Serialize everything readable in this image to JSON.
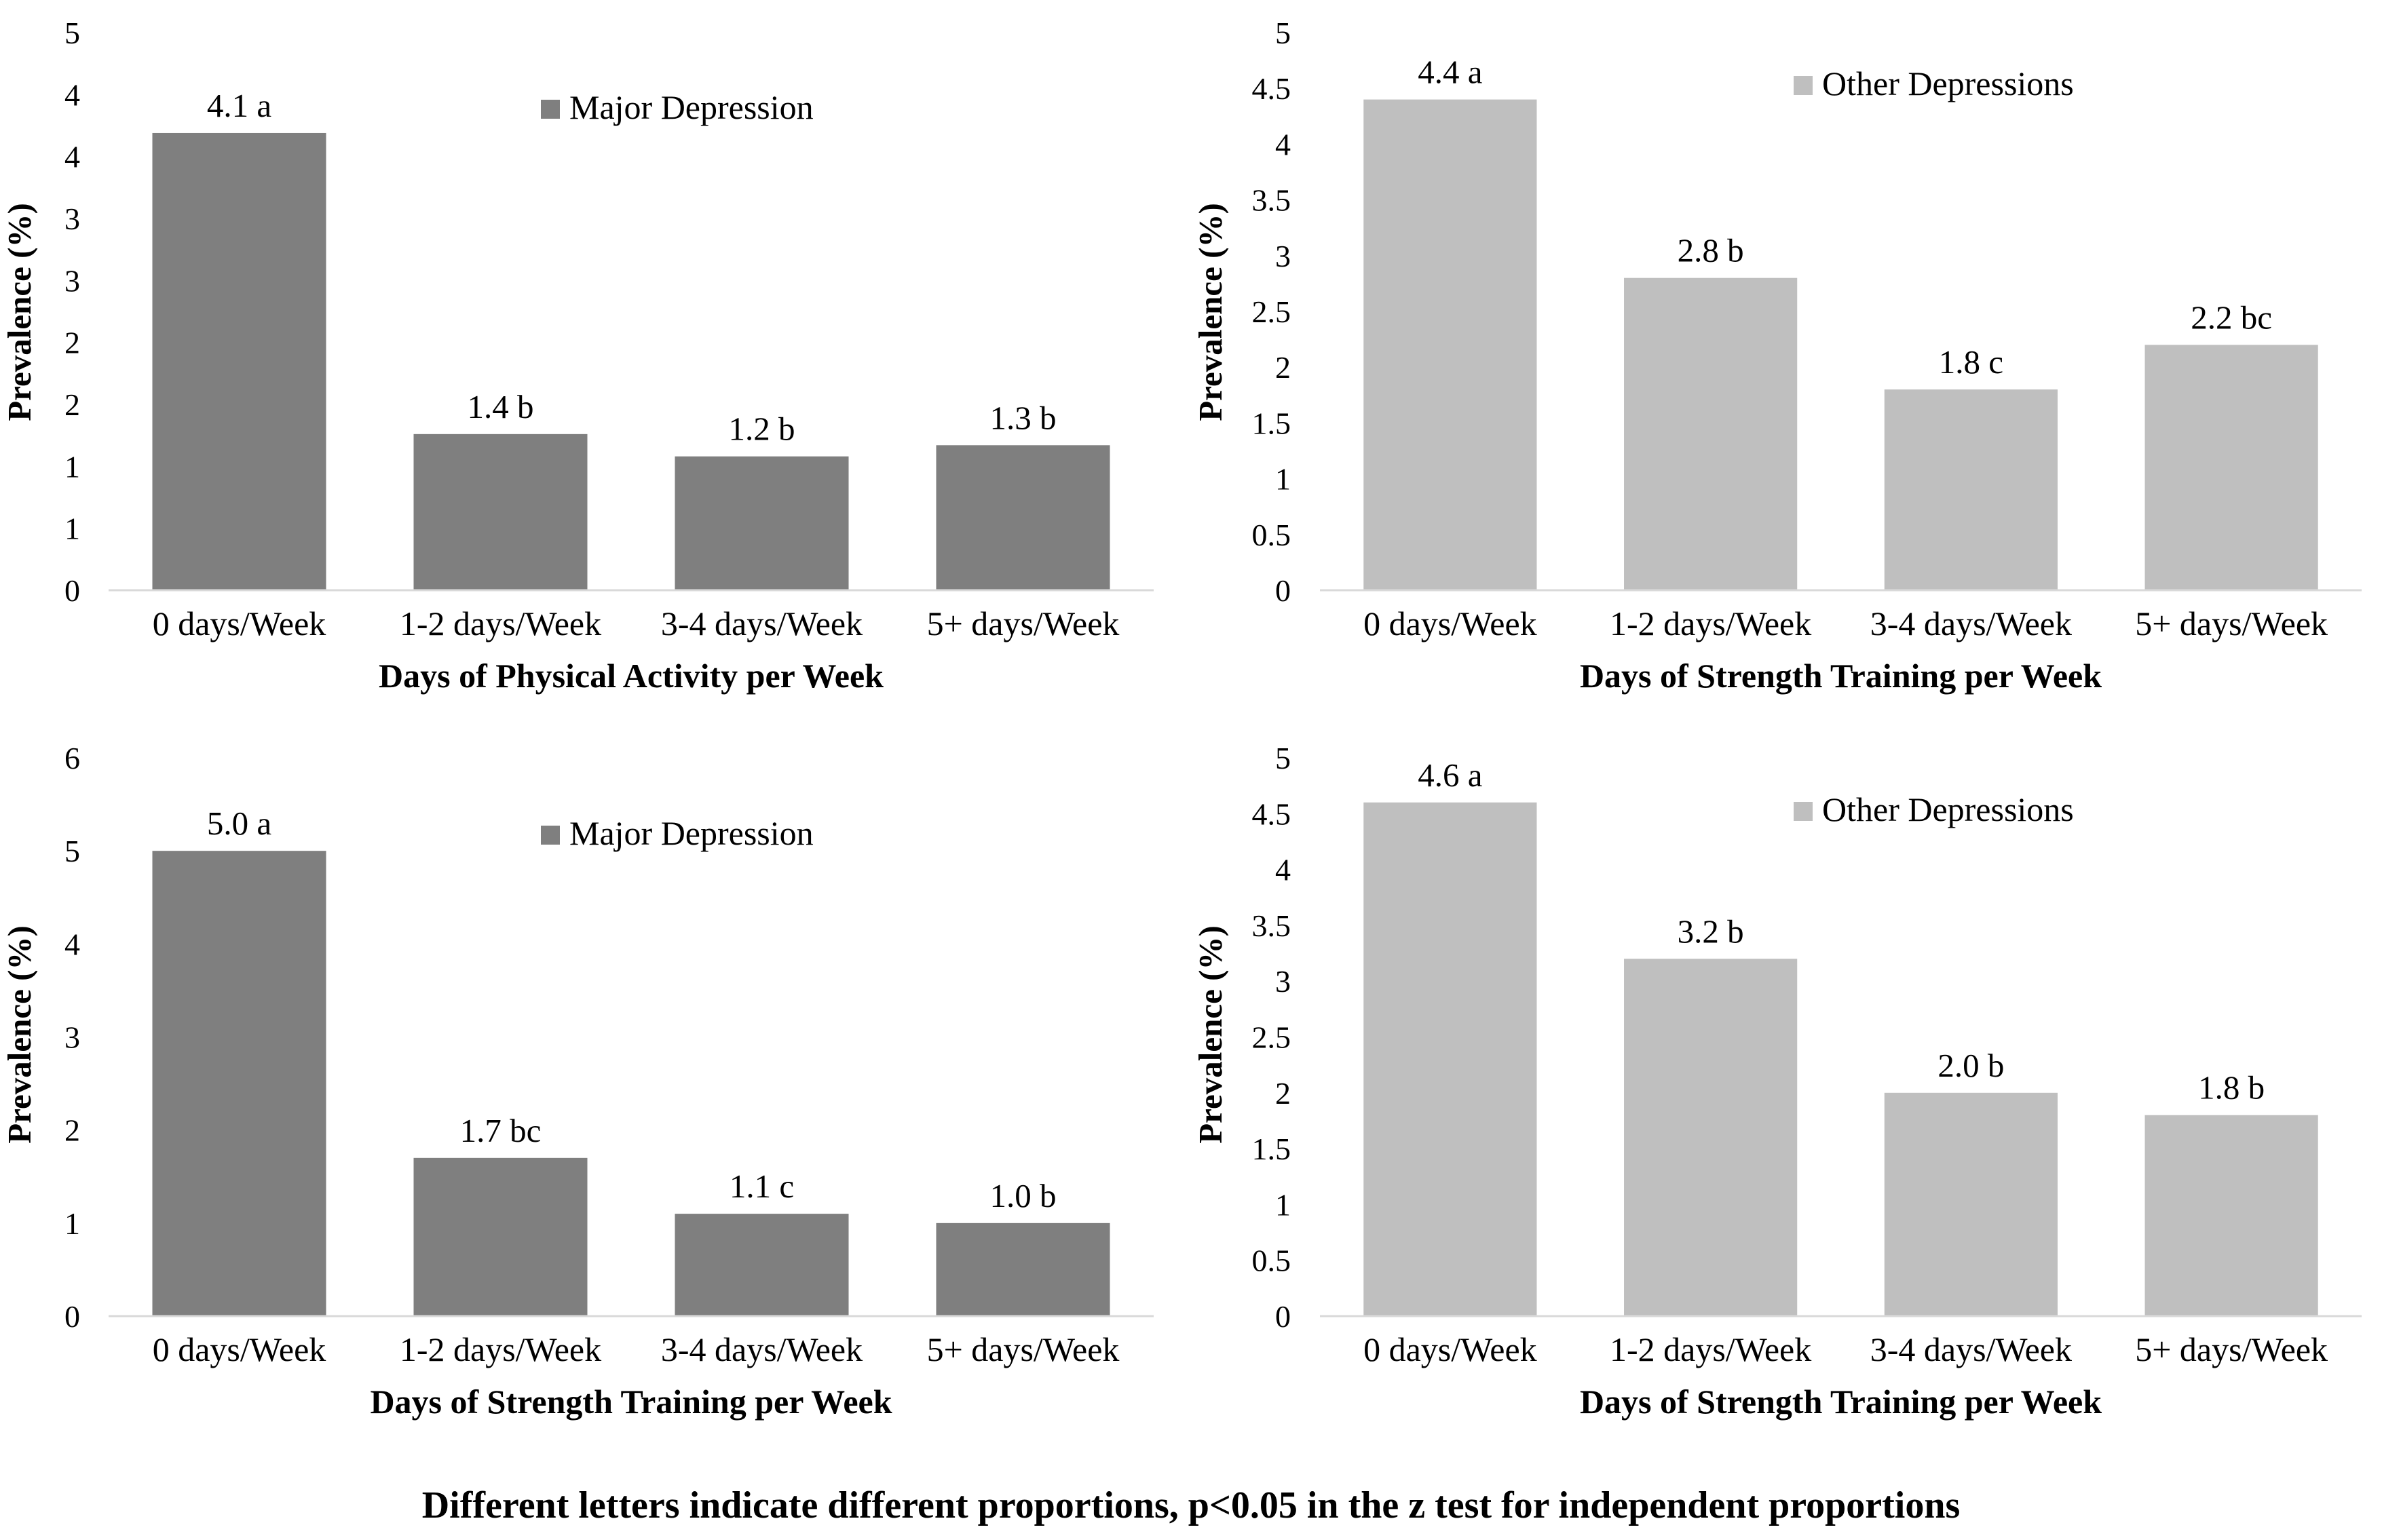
{
  "chart_data": [
    {
      "type": "bar",
      "title": "",
      "xlabel": "Days of Physical Activity  per Week",
      "ylabel": "Prevalence (%)",
      "ylim": [
        0,
        5
      ],
      "yticks": [
        "0",
        "1",
        "1",
        "2",
        "2",
        "3",
        "3",
        "4",
        "4",
        "5"
      ],
      "categories": [
        "0 days/Week",
        "1-2 days/Week",
        "3-4 days/Week",
        "5+ days/Week"
      ],
      "values": [
        4.1,
        1.4,
        1.2,
        1.3
      ],
      "data_labels": [
        "4.1 a",
        "1.4 b",
        "1.2 b",
        "1.3 b"
      ],
      "legend": "Major Depression",
      "color": "#7f7f7f"
    },
    {
      "type": "bar",
      "title": "",
      "xlabel": "Days of Strength Training per Week",
      "ylabel": "Prevalence (%)",
      "ylim": [
        0,
        5
      ],
      "yticks": [
        "0",
        "0.5",
        "1",
        "1.5",
        "2",
        "2.5",
        "3",
        "3.5",
        "4",
        "4.5",
        "5"
      ],
      "categories": [
        "0 days/Week",
        "1-2 days/Week",
        "3-4 days/Week",
        "5+ days/Week"
      ],
      "values": [
        4.4,
        2.8,
        1.8,
        2.2
      ],
      "data_labels": [
        "4.4 a",
        "2.8 b",
        "1.8 c",
        "2.2 bc"
      ],
      "legend": "Other Depressions",
      "color": "#bfbfbf"
    },
    {
      "type": "bar",
      "title": "",
      "xlabel": "Days of Strength Training per Week",
      "ylabel": "Prevalence (%)",
      "ylim": [
        0,
        6
      ],
      "yticks": [
        "0",
        "1",
        "2",
        "3",
        "4",
        "5",
        "6"
      ],
      "categories": [
        "0 days/Week",
        "1-2 days/Week",
        "3-4 days/Week",
        "5+ days/Week"
      ],
      "values": [
        5.0,
        1.7,
        1.1,
        1.0
      ],
      "data_labels": [
        "5.0 a",
        "1.7 bc",
        "1.1 c",
        "1.0 b"
      ],
      "legend": "Major Depression",
      "color": "#7f7f7f"
    },
    {
      "type": "bar",
      "title": "",
      "xlabel": "Days of Strength Training per Week",
      "ylabel": "Prevalence (%)",
      "ylim": [
        0,
        5
      ],
      "yticks": [
        "0",
        "0.5",
        "1",
        "1.5",
        "2",
        "2.5",
        "3",
        "3.5",
        "4",
        "4.5",
        "5"
      ],
      "categories": [
        "0 days/Week",
        "1-2 days/Week",
        "3-4 days/Week",
        "5+ days/Week"
      ],
      "values": [
        4.6,
        3.2,
        2.0,
        1.8
      ],
      "data_labels": [
        "4.6 a",
        "3.2 b",
        "2.0 b",
        "1.8 b"
      ],
      "legend": "Other Depressions",
      "color": "#bfbfbf"
    }
  ],
  "footnote": "Different letters indicate different proportions, p<0.05 in the z test for independent proportions"
}
